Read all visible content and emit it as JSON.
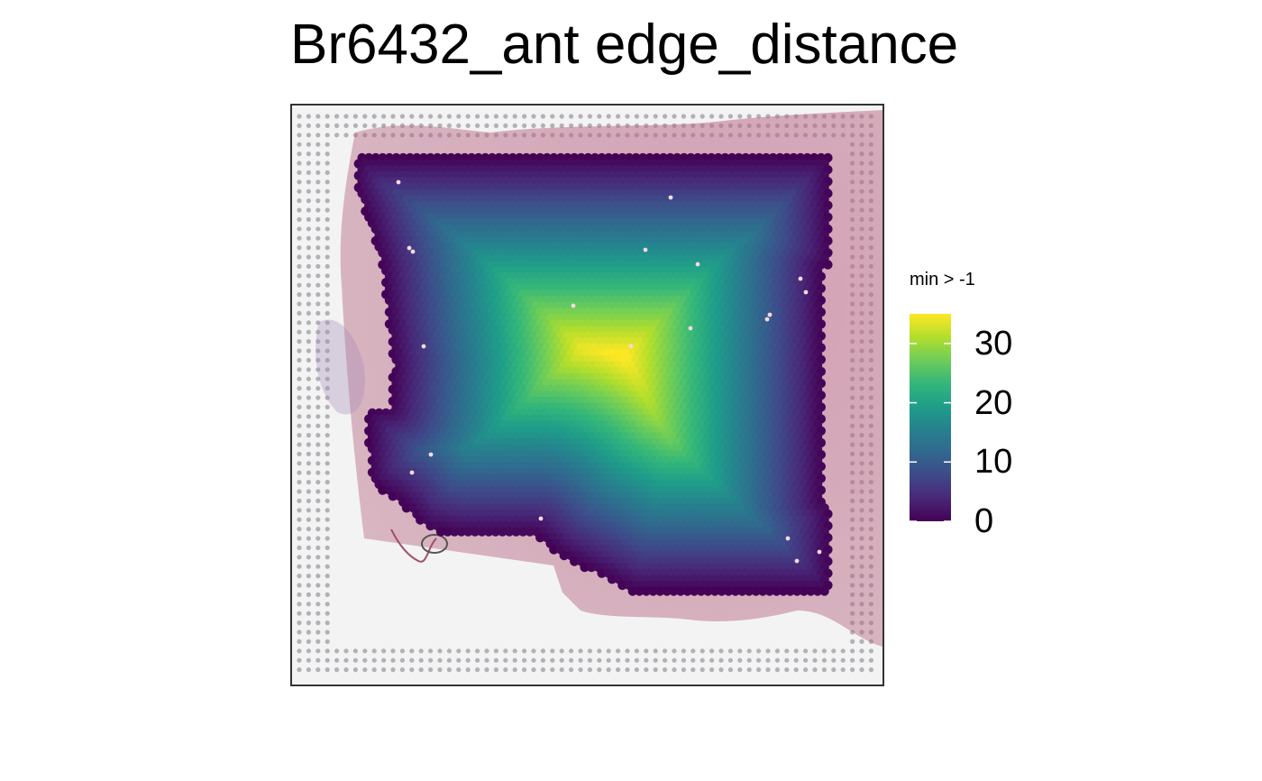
{
  "title": "Br6432_ant edge_distance",
  "colors": {
    "viridis": [
      "#440154",
      "#482878",
      "#3e4a89",
      "#31688e",
      "#26828e",
      "#1f9e89",
      "#35b779",
      "#6dcd59",
      "#b4de2c",
      "#fde725"
    ],
    "tissue": "#b2607c",
    "background": "#f3f3f3",
    "fiducial": "#9b9ba3"
  },
  "chart_data": {
    "type": "heatmap",
    "title": "Br6432_ant edge_distance",
    "xlabel": "",
    "ylabel": "",
    "color_scale": {
      "palette": "viridis",
      "title": "min > -1",
      "range": [
        0,
        35
      ],
      "ticks": [
        0,
        10,
        20,
        30
      ],
      "tick_labels": [
        "0",
        "10",
        "20",
        "30"
      ]
    },
    "value_description": "edge distance per spot; max about 35 near center-left column, 0 at tissue edges",
    "legend_position": "right"
  }
}
